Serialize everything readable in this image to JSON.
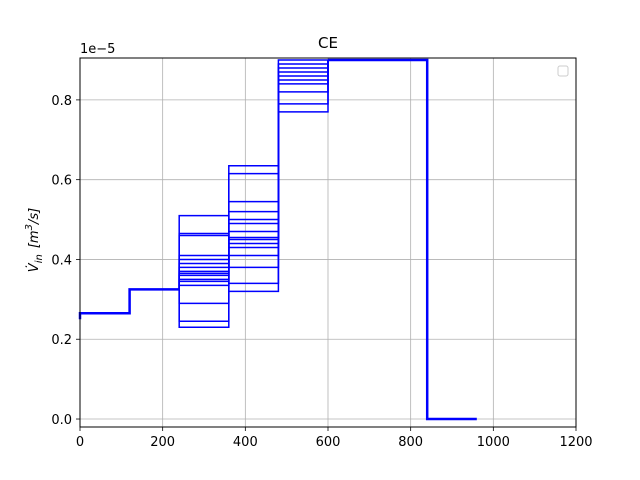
{
  "chart_data": {
    "type": "line",
    "title": "CE",
    "xlabel": "",
    "ylabel": "V̇_in [m³/s]",
    "ylabel_parts": {
      "main": "V",
      "sub": "in",
      "unit": "[m",
      "sup": "3",
      "unit_end": "/s]"
    },
    "y_offset_label": "1e−5",
    "xlim": [
      0,
      1200
    ],
    "ylim": [
      -0.02,
      0.905
    ],
    "x_ticks": [
      0,
      200,
      400,
      600,
      800,
      1000,
      1200
    ],
    "x_tick_labels": [
      "0",
      "200",
      "400",
      "600",
      "800",
      "1000",
      "1200"
    ],
    "y_ticks": [
      0.0,
      0.2,
      0.4,
      0.6,
      0.8
    ],
    "y_tick_labels": [
      "0.0",
      "0.2",
      "0.4",
      "0.6",
      "0.8"
    ],
    "grid": true,
    "legend": "top-right (empty)",
    "color": "#0000ff",
    "base_series": {
      "x": [
        0,
        0,
        120,
        120,
        240
      ],
      "y": [
        0.25,
        0.265,
        0.265,
        0.325,
        0.325
      ]
    },
    "tail_series": {
      "x": [
        600,
        840,
        840,
        960
      ],
      "y": [
        0.9,
        0.9,
        0.0,
        0.0
      ]
    },
    "stage_segments": [
      {
        "x_start": 240,
        "x_end": 360,
        "y_start": 0.325,
        "levels": [
          0.23,
          0.245,
          0.29,
          0.335,
          0.345,
          0.35,
          0.36,
          0.365,
          0.37,
          0.38,
          0.39,
          0.4,
          0.41,
          0.46,
          0.465,
          0.51
        ]
      },
      {
        "x_start": 360,
        "x_end": 480,
        "y_start": 0.4,
        "levels": [
          0.32,
          0.34,
          0.38,
          0.41,
          0.43,
          0.44,
          0.45,
          0.455,
          0.47,
          0.49,
          0.5,
          0.52,
          0.545,
          0.615,
          0.635
        ]
      },
      {
        "x_start": 480,
        "x_end": 600,
        "y_start": 0.5,
        "levels": [
          0.77,
          0.79,
          0.82,
          0.84,
          0.85,
          0.86,
          0.87,
          0.88,
          0.89,
          0.9
        ]
      }
    ]
  }
}
